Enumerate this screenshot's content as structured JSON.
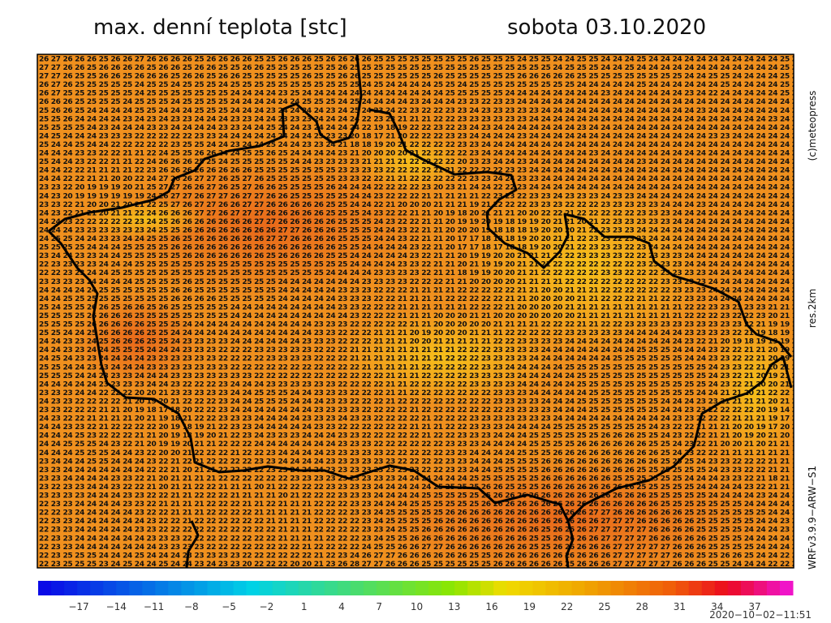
{
  "header": {
    "title": "max. denní teplota [stc]",
    "date": "sobota 03.10.2020"
  },
  "side": {
    "copyright": "(c)meteopress",
    "resolution": "res.2km",
    "model": "WRFv3.9.9−ARW−S1"
  },
  "timestamp": "2020−10−02−11:51",
  "map": {
    "grid": [
      "26 27 26 26 26 25 26 26 27 26 26 26 26 25 26 26 26 26 25 25 26 26 26 25 26 26 26 26 25 25 25 25 25 25 25 25 26 25 25 25 24 25 25 24 24 25 25 24 24 24 25 24 24 24 24 24 24 24 24 24 24 24 25 2",
      "27 27 26 26 25 26 26 26 26 25 26 26 25 26 26 25 25 26 26 25 25 25 25 25 25 26 25 25 25 25 25 25 25 25 25 25 25 25 25 25 25 25 25 24 25 25 25 24 24 25 24 24 24 24 24 24 24 24 24 24 24 24 25 2",
      "27 27 26 25 25 26 26 25 26 26 26 25 26 26 25 26 26 25 25 25 25 25 26 25 25 26 26 25 25 25 25 25 25 26 25 25 25 25 25 25 26 26 26 26 26 25 25 25 25 25 25 25 25 25 24 24 25 25 24 24 24 24 25 2",
      "26 27 26 25 25 25 25 25 24 25 25 24 25 25 25 24 25 25 25 25 25 25 25 25 25 25 25 24 25 24 24 24 24 25 25 24 25 25 25 25 25 25 25 25 25 24 24 24 24 24 25 24 24 24 24 24 24 25 24 24 24 24 25 2",
      "26 27 25 25 25 25 25 25 24 25 25 25 25 25 25 25 24 24 24 24 23 25 24 24 24 24 24 24 24 24 24 24 24 24 25 25 25 25 25 24 24 24 24 24 24 24 24 23 24 24 24 24 24 24 23 24 22 24 24 24 24 24 25 2",
      "26 26 26 25 25 25 25 24 25 25 25 24 25 25 25 25 24 24 24 24 24 24 25 25 25 24 25 24 24 24 24 23 24 24 24 23 23 22 23 23 24 24 24 24 24 24 24 24 24 24 24 24 24 24 24 24 24 24 24 24 24 24 24 2",
      "25 26 26 25 24 24 24 24 25 25 24 24 24 25 25 25 24 24 24 23 24 24 24 24 23 24 25 24 23 24 22 23 22 22 23 23 24 23 23 23 23 23 24 24 24 24 24 24 24 24 24 24 24 24 24 23 24 24 24 24 24 24 24 2",
      "25 25 26 24 24 24 24 23 24 23 24 23 23 24 24 24 23 23 24 24 23 23 23 24 24 24 24 22 23 23 21 21 21 22 22 23 23 23 23 23 23 24 24 24 24 24 24 24 24 24 24 24 24 24 24 24 24 24 24 24 24 23 24 2",
      "25 25 25 25 24 23 24 24 24 23 23 24 24 24 24 23 23 24 24 25 24 24 23 24 24 24 24 22 19 18 19 22 22 23 22 23 24 23 24 24 24 24 24 24 24 23 24 24 24 24 24 24 24 24 24 24 24 24 24 24 24 24 24 2",
      "24 25 24 24 24 23 23 23 22 22 22 22 22 23 23 24 24 24 24 24 24 24 24 23 23 23 20 18 17 21 20 22 22 22 23 23 24 24 24 24 23 24 24 24 24 24 24 24 24 24 24 24 24 24 24 24 23 23 24 24 24 24 24 2",
      "25 24 24 25 24 24 22 22 22 22 22 23 25 25 24 24 23 24 24 25 24 24 23 23 24 21 18 18 19 20 21 22 22 22 22 23 23 24 24 24 24 24 24 24 24 24 24 24 24 24 24 24 24 24 24 24 24 24 24 24 24 24 24 2",
      "24 24 24 23 23 22 22 21 21 22 24 25 25 26 26 24 24 25 25 26 25 24 24 24 24 23 21 20 20 20 20 21 22 22 22 22 23 24 24 24 24 24 24 24 24 24 23 24 24 24 24 24 24 24 24 24 24 24 24 24 24 24 24 2",
      "25 24 24 23 22 22 21 21 22 24 26 26 26 25 25 24 25 25 25 25 25 24 24 23 23 23 23 21 21 21 21 22 22 22 22 20 23 23 24 24 23 24 24 24 24 24 24 24 24 24 23 24 24 24 24 24 24 24 24 24 24 24 24 2",
      "24 24 22 22 21 21 21 21 22 23 26 26 26 26 26 26 26 26 25 25 25 25 25 25 25 23 23 23 23 22 22 22 22 21 21 22 22 22 22 23 23 24 24 24 24 24 24 24 24 24 24 24 24 24 24 24 24 24 24 24 24 24 24 2",
      "24 24 22 22 21 21 20 20 22 24 27 26 26 27 27 26 25 27 26 25 25 25 25 25 25 23 23 22 22 21 21 22 22 22 22 22 23 23 24 24 23 23 24 24 24 24 24 24 24 24 24 24 24 24 24 24 24 24 24 24 24 24 24 2",
      "23 23 22 20 19 19 19 20 21 25 27 27 26 26 27 26 25 27 26 26 25 25 25 25 26 24 24 24 22 22 22 22 23 20 23 21 24 24 22 22 23 24 24 24 24 24 24 24 24 24 24 24 24 24 24 24 24 24 24 24 24 24 24 2",
      "24 23 20 19 19 19 19 19 19 24 26 27 27 26 27 27 26 27 27 26 26 25 25 25 25 25 24 24 23 22 22 22 21 21 21 21 21 22 23 23 22 23 23 24 23 23 23 24 23 23 24 24 24 24 24 24 24 24 24 24 24 24 24 2",
      "23 23 22 21 20 20 21 20 21 22 25 27 26 27 27 26 26 27 27 26 26 26 26 26 25 25 24 24 22 21 20 20 20 21 21 21 19 21 22 22 22 23 23 23 22 22 22 23 23 23 23 23 24 24 24 23 24 24 24 24 24 24 24 2",
      "24 23 22 21 21 20 21 21 22 24 26 26 26 27 27 26 27 27 27 26 26 26 26 26 25 25 25 24 23 22 22 21 21 20 19 18 20 21 21 21 20 20 22 22 21 22 22 22 22 22 23 23 23 24 24 24 24 24 24 24 24 24 24 2",
      "24 24 23 22 22 22 22 22 23 24 25 26 26 26 26 26 26 26 27 27 26 26 26 26 26 25 25 25 24 23 22 22 21 21 20 19 19 20 19 18 19 19 20 21 21 20 21 22 23 23 23 23 23 24 24 24 24 24 24 24 24 24 24 2",
      "24 24 24 23 23 23 23 23 23 24 25 25 26 26 26 26 26 26 26 26 27 27 26 26 26 25 25 25 24 24 23 22 21 21 20 20 20 19 18 18 18 19 20 20 20 21 22 23 23 23 24 24 24 24 24 24 24 24 24 24 24 24 24 2",
      "24 25 25 24 24 23 23 24 24 25 25 26 25 26 26 26 26 26 26 27 27 26 26 26 26 25 25 25 24 24 23 22 21 21 20 17 17 18 18 18 19 20 20 21 21 22 23 23 22 23 23 24 24 24 24 24 24 24 24 24 24 24 24 2",
      "25 25 25 25 24 24 24 25 25 25 25 26 26 26 26 26 26 26 26 26 26 26 26 26 26 25 25 24 24 24 24 23 22 21 20 17 17 18 17 18 18 19 20 20 21 22 23 23 23 22 23 24 24 24 24 24 24 24 24 24 24 24 24 2",
      "23 24 24 23 23 24 24 25 25 25 25 25 26 26 26 26 26 26 26 25 26 26 26 26 25 25 24 24 24 24 24 23 22 21 21 20 19 19 20 20 21 21 21 22 22 23 23 23 23 22 22 23 23 23 24 24 24 24 24 24 24 24 24 2",
      "22 23 23 23 23 24 24 24 25 25 25 25 25 25 25 25 25 25 25 25 25 25 25 25 25 25 24 24 24 24 23 23 22 21 21 20 21 19 19 20 21 21 21 22 22 22 22 22 22 22 23 23 23 23 24 24 24 24 24 24 24 24 24 2",
      "22 22 23 23 24 24 25 25 25 25 25 25 25 25 25 25 25 25 25 25 25 25 25 25 24 24 24 24 23 23 23 23 22 21 21 18 19 19 20 20 21 21 22 22 22 22 22 23 23 22 22 22 23 23 23 23 24 24 24 24 24 24 24 2",
      "23 23 23 23 24 24 24 24 25 25 25 25 26 25 25 25 25 25 25 25 24 24 24 24 24 24 24 23 23 23 23 22 22 22 21 21 20 20 20 20 21 21 21 21 22 22 22 22 22 22 22 22 23 23 23 23 24 24 24 24 24 24 24 2",
      "24 24 24 24 24 25 25 25 25 25 25 26 26 25 25 25 25 25 25 25 24 24 24 24 24 23 23 23 22 22 22 21 21 21 21 22 22 22 22 22 21 21 20 20 21 21 21 22 22 22 22 22 22 23 23 23 24 24 24 24 24 24 24 2",
      "24 24 25 25 25 25 25 25 25 25 25 26 26 26 26 25 25 25 25 25 24 24 24 24 24 23 23 23 22 22 21 21 21 21 22 22 22 22 22 21 21 20 20 20 20 21 21 22 22 22 21 21 22 22 23 23 24 24 24 24 24 24 24 2",
      "25 24 25 25 26 26 25 26 26 25 26 25 25 25 25 25 24 24 24 24 24 24 24 24 24 23 23 22 22 22 21 21 21 21 21 21 22 22 22 21 20 20 20 20 21 21 21 21 21 21 21 21 21 21 22 22 23 23 23 23 23 21 21 2",
      "25 25 25 25 26 26 26 26 25 25 25 25 25 25 25 25 24 24 24 24 24 24 24 24 24 24 23 22 22 22 21 21 21 20 20 20 21 21 20 20 20 20 20 20 20 21 21 21 21 21 21 21 21 21 22 22 22 23 22 22 23 20 21 1",
      "25 25 25 25 26 26 26 26 26 25 25 25 24 24 24 24 24 24 24 24 24 24 24 23 23 23 22 22 22 22 22 21 21 20 20 20 20 20 21 21 21 21 22 22 22 21 21 22 22 23 23 23 23 23 23 23 23 23 23 22 21 19 19 1",
      "25 25 24 24 25 26 26 26 26 25 25 24 24 24 24 24 24 24 24 24 24 24 24 23 23 22 22 22 21 21 21 20 19 20 20 20 21 21 21 22 22 22 22 22 23 23 23 23 23 24 24 24 24 24 23 23 23 23 22 21 19 18 19 1",
      "24 24 23 23 24 25 26 26 26 25 25 24 23 23 23 23 24 24 24 24 24 24 23 23 23 22 22 22 21 21 21 20 20 21 21 21 21 21 22 22 23 23 23 23 24 24 24 24 24 24 24 24 24 24 23 22 21 20 19 18 19 19 19 2",
      "24 24 23 23 24 24 25 25 25 24 24 24 23 23 23 22 22 22 23 23 23 23 23 22 22 22 21 21 21 21 21 21 21 21 21 22 22 22 23 23 23 23 24 24 24 24 24 24 24 24 25 25 25 24 24 24 23 22 22 21 21 20 19 2",
      "24 25 24 23 23 24 24 24 24 23 23 23 23 23 23 22 22 22 22 23 23 23 23 22 22 22 21 21 21 21 21 21 21 21 22 22 22 23 23 23 23 24 24 24 24 24 24 24 25 25 25 25 25 25 24 24 23 23 22 22 21 20 19 2",
      "25 25 24 24 23 23 24 24 24 23 23 23 23 23 23 23 22 22 22 22 22 22 22 22 22 22 22 21 21 21 21 21 22 22 22 22 22 23 23 24 24 24 24 24 25 25 25 25 25 25 25 25 25 25 25 25 24 23 23 22 21 20 21 2",
      "25 25 25 24 24 23 23 23 24 24 24 23 23 23 23 23 23 23 22 22 22 22 22 22 22 22 22 22 22 21 21 21 22 22 22 22 23 23 23 23 24 24 24 24 24 25 25 25 25 25 25 25 25 25 25 25 24 23 22 21 20 19 21 2",
      "24 24 24 24 24 23 23 23 23 24 24 23 22 22 22 23 24 24 24 23 23 23 23 23 23 22 22 22 22 21 21 22 22 22 22 22 23 23 23 23 24 24 24 24 24 25 25 25 25 25 25 25 25 25 25 25 24 23 22 21 20 20 21 2",
      "23 23 23 24 24 22 22 22 20 20 21 23 23 23 23 23 24 24 25 25 25 24 24 23 23 23 22 22 22 21 21 22 22 22 22 22 22 22 23 23 23 24 24 24 24 24 25 25 25 25 25 25 25 25 25 24 24 21 21 20 21 22 22 1",
      "24 23 23 22 22 22 22 21 20 19 20 21 22 22 22 23 24 24 25 25 25 24 24 24 23 23 22 22 22 21 22 22 22 22 22 22 22 22 23 23 23 23 24 24 24 25 25 25 25 25 25 25 24 24 24 23 23 21 21 21 21 20 21 2",
      "23 23 22 22 22 21 21 20 19 18 17 18 20 22 22 23 24 24 24 24 24 24 24 23 23 23 23 22 22 22 22 21 22 22 22 22 22 22 22 23 23 23 23 24 24 24 25 25 25 25 25 25 24 24 23 23 22 22 22 22 20 19 14 2",
      "24 23 22 22 21 21 21 21 20 21 19 18 21 22 22 23 23 23 24 24 24 24 23 23 23 24 23 23 22 22 22 22 21 22 22 22 23 23 23 23 23 23 23 24 24 24 24 24 24 24 24 24 24 23 23 22 22 22 21 21 21 19 17 2",
      "24 24 23 23 22 21 22 22 22 22 20 19 18 19 21 22 23 23 24 24 24 24 24 23 23 22 22 22 22 22 22 21 21 21 22 22 23 23 23 24 24 24 24 25 25 25 25 25 25 25 25 24 23 22 22 21 21 21 20 20 19 17 20 2",
      "24 24 24 25 23 22 22 22 21 21 20 19 18 19 20 21 22 23 24 23 23 23 24 24 24 23 23 22 22 22 22 22 21 22 22 23 23 23 24 24 24 25 25 25 25 25 25 26 26 26 25 25 24 23 22 22 21 21 20 19 20 21 20 1",
      "24 24 25 25 25 24 23 22 21 20 19 19 20 21 21 22 22 22 24 24 24 24 24 24 24 23 23 23 22 22 22 22 22 22 23 23 23 24 24 24 24 25 25 25 25 26 26 26 26 26 26 25 25 24 23 22 21 20 20 21 20 21 21 1",
      "24 24 24 25 25 25 24 24 23 22 20 20 21 22 22 22 21 22 22 23 24 24 24 24 23 23 23 23 23 22 22 22 22 22 23 23 24 24 24 24 25 25 25 26 26 26 26 26 26 26 26 26 25 24 23 22 22 21 21 21 21 21 21 1",
      "23 24 24 24 25 25 24 24 24 23 22 21 22 21 22 22 22 22 23 23 24 24 24 24 23 23 23 23 23 23 22 22 22 22 23 23 24 24 24 25 25 25 26 26 26 26 26 26 26 26 26 26 25 25 25 24 23 23 22 22 22 21 21 1",
      "23 23 24 24 24 24 24 24 24 22 22 21 20 21 21 22 22 22 22 23 23 24 24 24 23 23 23 23 23 23 23 23 22 22 23 23 24 24 25 25 25 25 26 26 26 26 26 26 26 26 25 25 25 25 25 25 24 23 23 22 22 21 21 1",
      "23 23 24 24 24 24 23 23 22 21 20 21 21 21 21 22 22 22 22 22 22 23 23 23 23 23 23 23 23 23 24 24 24 24 24 24 25 25 25 25 25 25 26 26 26 26 26 26 25 25 25 25 25 25 24 24 24 23 23 22 21 18 21 1",
      "23 22 23 23 24 24 23 22 22 21 20 21 21 22 22 21 21 21 20 21 22 22 22 22 23 23 23 23 24 24 24 24 24 25 25 25 25 26 26 25 25 25 26 26 26 26 26 26 26 26 25 25 25 25 25 24 24 24 24 23 22 21 21 1",
      "23 23 23 23 24 24 24 23 23 22 22 21 21 22 22 22 21 21 21 21 20 21 22 22 22 23 23 23 24 24 24 24 25 25 25 25 25 25 26 26 26 26 26 26 26 26 26 26 26 26 26 25 25 25 25 25 24 24 24 24 23 24 24 2",
      "22 23 23 24 24 24 24 23 23 22 21 21 21 21 22 22 22 21 21 22 21 21 21 22 22 22 23 23 24 24 24 25 25 25 25 25 25 26 26 26 26 26 26 26 26 26 26 26 26 26 26 26 25 25 25 25 25 25 25 24 24 24 24 2",
      "22 22 23 24 24 24 24 24 23 22 22 21 21 21 22 22 22 22 21 21 21 21 21 22 22 22 23 23 24 25 25 25 25 25 26 26 26 26 26 26 26 26 26 26 26 26 27 27 26 26 26 26 26 26 25 25 25 25 25 25 25 24 24 2",
      "22 23 23 24 24 24 24 24 24 23 22 22 21 22 22 22 22 22 22 21 21 21 21 22 22 22 22 23 24 25 25 25 25 26 26 26 26 26 26 26 26 26 26 26 26 26 26 27 27 27 26 26 26 26 26 25 25 25 25 25 24 24 23 2",
      "22 23 23 24 24 24 24 24 23 23 22 22 22 22 22 22 22 22 22 22 21 21 21 22 22 22 22 23 23 24 25 25 26 26 26 26 26 26 26 26 26 26 25 26 26 26 27 27 27 27 27 26 26 26 26 25 25 25 25 24 24 24 23 2",
      "22 23 23 24 24 24 24 24 24 23 23 23 22 22 22 22 22 22 22 22 21 21 21 21 22 22 22 23 24 25 25 26 26 26 26 26 26 26 26 26 26 25 25 26 26 26 26 27 27 27 27 26 26 26 26 26 25 25 25 24 24 24 24 2",
      "22 23 23 24 24 24 24 24 24 24 23 23 23 23 22 22 22 22 22 22 22 22 21 22 22 22 22 24 25 25 26 26 27 27 26 26 26 26 26 26 26 25 25 26 26 26 26 26 27 27 27 27 27 26 26 26 25 25 25 25 24 24 24 2",
      "22 23 25 25 25 24 24 24 25 24 24 24 23 23 23 23 23 22 22 22 22 22 22 21 22 23 24 26 27 27 26 26 26 26 26 26 25 25 26 26 26 26 26 26 26 26 26 26 27 27 27 27 27 26 26 25 25 26 26 25 24 24 22 2",
      "22 23 25 25 25 23 24 25 24 24 25 24 24 23 24 23 23 20 22 22 22 20 20 21 23 26 28 27 27 26 26 26 25 25 25 25 25 25 26 26 26 26 26 26 25 26 26 26 27 27 27 27 27 26 26 26 25 25 24 24 24 22 22 2"
    ]
  },
  "colorbar": {
    "ticks": [
      "−17",
      "−14",
      "−11",
      "−8",
      "−5",
      "−2",
      "1",
      "4",
      "7",
      "10",
      "13",
      "16",
      "19",
      "22",
      "25",
      "28",
      "31",
      "34",
      "37"
    ]
  }
}
